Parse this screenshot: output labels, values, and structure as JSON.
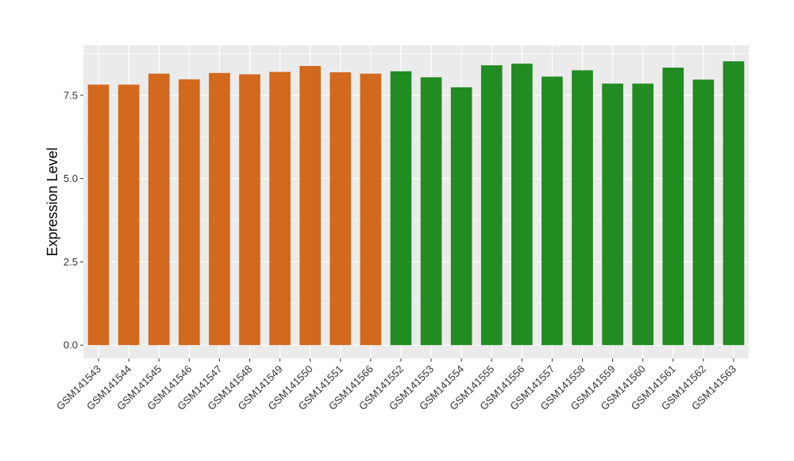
{
  "chart_data": {
    "type": "bar",
    "title": "",
    "xlabel": "",
    "ylabel": "Expression Level",
    "ylim": [
      -0.4,
      9.0
    ],
    "yticks": [
      0.0,
      2.5,
      5.0,
      7.5
    ],
    "ytick_labels": [
      "0.0",
      "2.5",
      "5.0",
      "7.5"
    ],
    "grid": true,
    "legend": "none",
    "categories": [
      "GSM141543",
      "GSM141544",
      "GSM141545",
      "GSM141546",
      "GSM141547",
      "GSM141548",
      "GSM141549",
      "GSM141550",
      "GSM141551",
      "GSM141566",
      "GSM141552",
      "GSM141553",
      "GSM141554",
      "GSM141555",
      "GSM141556",
      "GSM141557",
      "GSM141558",
      "GSM141559",
      "GSM141560",
      "GSM141561",
      "GSM141562",
      "GSM141563"
    ],
    "values": [
      7.82,
      7.82,
      8.15,
      7.98,
      8.17,
      8.13,
      8.2,
      8.38,
      8.19,
      8.15,
      8.22,
      8.04,
      7.74,
      8.4,
      8.45,
      8.06,
      8.25,
      7.85,
      7.85,
      8.33,
      7.97,
      8.52
    ],
    "colors": [
      "#D2691E",
      "#D2691E",
      "#D2691E",
      "#D2691E",
      "#D2691E",
      "#D2691E",
      "#D2691E",
      "#D2691E",
      "#D2691E",
      "#D2691E",
      "#228B22",
      "#228B22",
      "#228B22",
      "#228B22",
      "#228B22",
      "#228B22",
      "#228B22",
      "#228B22",
      "#228B22",
      "#228B22",
      "#228B22",
      "#228B22"
    ],
    "panel_background": "#EBEBEB",
    "grid_color": "#FFFFFF"
  }
}
